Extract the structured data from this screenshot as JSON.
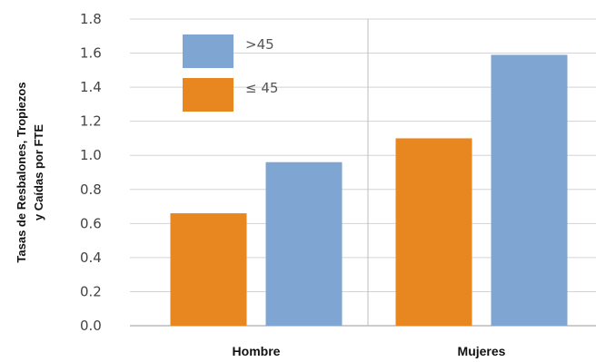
{
  "chart_data": {
    "type": "bar",
    "title": "",
    "xlabel": "",
    "ylabel_lines": [
      "Tasas de Resbalones, Tropiezos",
      "y Caídas por FTE"
    ],
    "categories": [
      "Hombre",
      "Mujeres"
    ],
    "series": [
      {
        "name": "≤ 45",
        "color": "#e8861f",
        "values": [
          0.66,
          1.1
        ]
      },
      {
        "name": ">45",
        "color": "#7fa6d2",
        "values": [
          0.96,
          1.59
        ]
      }
    ],
    "legend_order": [
      1,
      0
    ],
    "legend_placement": "top-left",
    "ylim": [
      0,
      1.8
    ],
    "yticks": [
      "0.0",
      "0.2",
      "0.4",
      "0.6",
      "0.8",
      "1.0",
      "1.2",
      "1.4",
      "1.6",
      "1.8"
    ],
    "grid": true
  }
}
